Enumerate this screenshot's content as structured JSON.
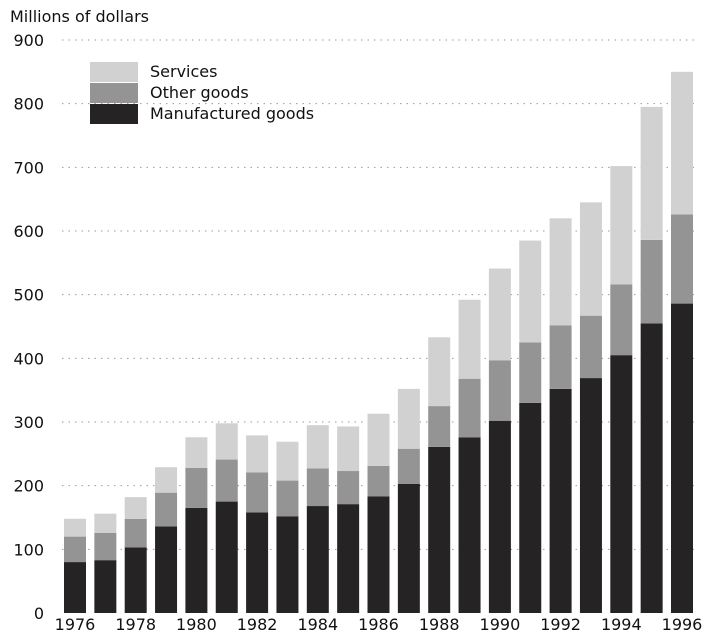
{
  "chart_data": {
    "type": "bar",
    "stacked": true,
    "ylabel": "Millions of dollars",
    "ylim": [
      0,
      900
    ],
    "yticks": [
      0,
      100,
      200,
      300,
      400,
      500,
      600,
      700,
      800,
      900
    ],
    "grid": "horizontal dotted",
    "legend_position": "top-left",
    "categories": [
      "1976",
      "1977",
      "1978",
      "1979",
      "1980",
      "1981",
      "1982",
      "1983",
      "1984",
      "1985",
      "1986",
      "1987",
      "1988",
      "1989",
      "1990",
      "1991",
      "1992",
      "1993",
      "1994",
      "1995",
      "1996"
    ],
    "x_tick_labels": [
      "1976",
      "1978",
      "1980",
      "1982",
      "1984",
      "1986",
      "1988",
      "1990",
      "1992",
      "1994",
      "1996"
    ],
    "series": [
      {
        "name": "Manufactured goods",
        "color": "#262324",
        "values": [
          80,
          83,
          103,
          136,
          165,
          175,
          158,
          152,
          168,
          171,
          183,
          203,
          261,
          276,
          302,
          330,
          352,
          369,
          405,
          455,
          486
        ]
      },
      {
        "name": "Other goods",
        "color": "#949494",
        "values": [
          40,
          43,
          45,
          53,
          63,
          66,
          63,
          56,
          59,
          52,
          48,
          55,
          64,
          92,
          95,
          95,
          100,
          98,
          111,
          131,
          140
        ]
      },
      {
        "name": "Services",
        "color": "#d1d1d1",
        "values": [
          28,
          30,
          34,
          40,
          48,
          57,
          58,
          61,
          68,
          70,
          82,
          94,
          108,
          124,
          144,
          160,
          168,
          178,
          186,
          209,
          224
        ]
      }
    ],
    "legend_order": [
      "Services",
      "Other goods",
      "Manufactured goods"
    ]
  }
}
